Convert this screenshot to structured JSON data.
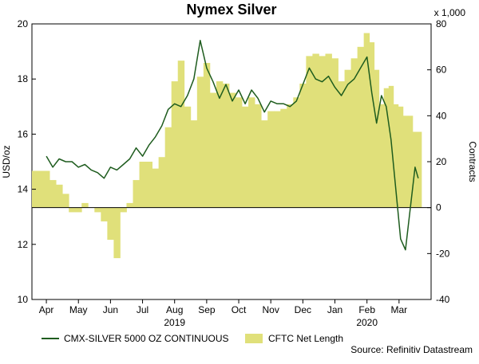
{
  "chart_data": {
    "type": "line+area",
    "title": "Nymex Silver",
    "left_axis": {
      "label": "USD/oz",
      "ylim": [
        10,
        20
      ],
      "ticks": [
        10,
        12,
        14,
        16,
        18,
        20
      ]
    },
    "right_axis": {
      "label": "Contracts",
      "unit_note": "x 1,000",
      "ylim": [
        -40,
        80
      ],
      "ticks": [
        -40,
        -20,
        0,
        20,
        40,
        60,
        80
      ]
    },
    "x_ticks": [
      "Apr",
      "May",
      "Jun",
      "Jul",
      "Aug",
      "Sep",
      "Oct",
      "Nov",
      "Dec",
      "Jan",
      "Feb",
      "Mar"
    ],
    "x_years": [
      {
        "label": "2019",
        "under": "Aug"
      },
      {
        "label": "2020",
        "under": "Feb"
      }
    ],
    "series": [
      {
        "name": "CMX-SILVER 5000 OZ CONTINUOUS",
        "axis": "left",
        "type": "line",
        "color": "#1e5c1e",
        "x": [
          0.0,
          0.2,
          0.4,
          0.6,
          0.8,
          1.0,
          1.2,
          1.4,
          1.6,
          1.8,
          2.0,
          2.2,
          2.4,
          2.6,
          2.8,
          3.0,
          3.2,
          3.4,
          3.6,
          3.8,
          4.0,
          4.2,
          4.4,
          4.6,
          4.8,
          5.0,
          5.2,
          5.4,
          5.6,
          5.8,
          6.0,
          6.2,
          6.4,
          6.6,
          6.8,
          7.0,
          7.2,
          7.4,
          7.6,
          7.8,
          8.0,
          8.2,
          8.4,
          8.6,
          8.8,
          9.0,
          9.2,
          9.4,
          9.6,
          9.8,
          10.0,
          10.15,
          10.3,
          10.45,
          10.6,
          10.75,
          10.9,
          11.05,
          11.2,
          11.35,
          11.5,
          11.6
        ],
        "values": [
          15.2,
          14.8,
          15.1,
          15.0,
          15.0,
          14.8,
          14.9,
          14.7,
          14.6,
          14.4,
          14.8,
          14.7,
          14.9,
          15.1,
          15.5,
          15.2,
          15.6,
          15.9,
          16.3,
          16.9,
          17.1,
          17.0,
          17.4,
          18.0,
          19.4,
          18.4,
          17.9,
          17.3,
          17.8,
          17.2,
          17.6,
          17.1,
          17.6,
          17.3,
          16.8,
          17.2,
          17.1,
          17.1,
          17.0,
          17.2,
          17.8,
          18.4,
          18.0,
          17.9,
          18.1,
          17.7,
          17.4,
          17.8,
          18.0,
          18.4,
          18.8,
          17.5,
          16.4,
          17.4,
          17.0,
          15.8,
          14.0,
          12.2,
          11.8,
          13.3,
          14.8,
          14.4
        ]
      },
      {
        "name": "CFTC Net Length",
        "axis": "right",
        "type": "area",
        "color": "#e0e07a",
        "x": [
          0.0,
          0.2,
          0.4,
          0.6,
          0.8,
          1.0,
          1.2,
          1.4,
          1.6,
          1.8,
          2.0,
          2.2,
          2.4,
          2.6,
          2.8,
          3.0,
          3.2,
          3.4,
          3.6,
          3.8,
          4.0,
          4.2,
          4.4,
          4.6,
          4.8,
          5.0,
          5.2,
          5.4,
          5.6,
          5.8,
          6.0,
          6.2,
          6.4,
          6.6,
          6.8,
          7.0,
          7.2,
          7.4,
          7.6,
          7.8,
          8.0,
          8.2,
          8.4,
          8.6,
          8.8,
          9.0,
          9.2,
          9.4,
          9.6,
          9.8,
          10.0,
          10.15,
          10.3,
          10.45,
          10.6,
          10.75,
          10.9,
          11.05,
          11.2,
          11.35,
          11.5,
          11.6
        ],
        "values": [
          16,
          12,
          10,
          6,
          -2,
          -2,
          2,
          0,
          -2,
          -6,
          -14,
          -22,
          -2,
          2,
          12,
          20,
          20,
          17,
          22,
          35,
          55,
          64,
          44,
          38,
          57,
          63,
          50,
          55,
          54,
          50,
          48,
          44,
          48,
          45,
          38,
          42,
          42,
          43,
          45,
          48,
          54,
          66,
          67,
          66,
          67,
          65,
          55,
          60,
          65,
          70,
          76,
          72,
          60,
          45,
          52,
          53,
          45,
          44,
          40,
          40,
          33,
          33
        ]
      }
    ],
    "legend_position": "bottom",
    "source": "Source: Refinitiv Datastream"
  }
}
